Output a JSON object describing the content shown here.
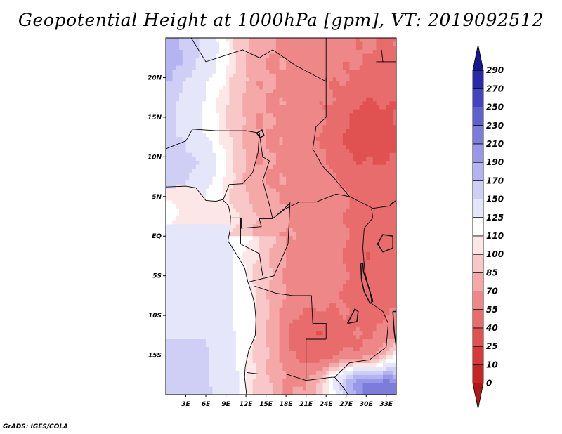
{
  "title": "Geopotential Height at 1000hPa [gpm], VT: 2019092512",
  "credit": "GrADS: IGES/COLA",
  "chart_data": {
    "type": "heatmap",
    "title": "Geopotential Height at 1000hPa [gpm], VT: 2019092512",
    "x_axis": {
      "range": [
        0,
        34.5
      ],
      "ticks": [
        3,
        6,
        9,
        12,
        15,
        18,
        21,
        24,
        27,
        30,
        33
      ],
      "tick_labels": [
        "3E",
        "6E",
        "9E",
        "12E",
        "15E",
        "18E",
        "21E",
        "24E",
        "27E",
        "30E",
        "33E"
      ]
    },
    "y_axis": {
      "range": [
        -20,
        25
      ],
      "ticks": [
        -15,
        -10,
        -5,
        0,
        5,
        10,
        15,
        20
      ],
      "tick_labels": [
        "15S",
        "10S",
        "5S",
        "EQ",
        "5N",
        "10N",
        "15N",
        "20N"
      ]
    },
    "colorbar": {
      "orientation": "vertical",
      "levels": [
        0,
        10,
        25,
        40,
        55,
        70,
        85,
        100,
        110,
        125,
        150,
        170,
        190,
        210,
        230,
        250,
        270,
        290
      ],
      "colors": [
        "#b01818",
        "#c82424",
        "#d83838",
        "#e05252",
        "#e86c6c",
        "#ee8888",
        "#f4a8a8",
        "#f8c8c8",
        "#fde6e6",
        "#ffffff",
        "#e6e6fb",
        "#cfcff6",
        "#b4b4f0",
        "#9898e6",
        "#7c7cdc",
        "#6060cc",
        "#4444bc",
        "#2a2aa8",
        "#161690"
      ]
    },
    "field_description": "Mostly 25-85 gpm (red) over central Africa with lowest values (~10-40) over Sudan/South Sudan and Botswana/Zambia; white (100-125) along the Atlantic coast and Gulf of Guinea; light blue (125-190) over the South Atlantic and southeast corner."
  }
}
